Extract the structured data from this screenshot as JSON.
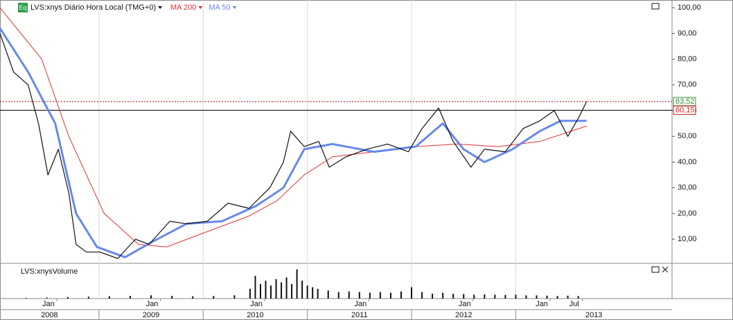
{
  "chart_data": {
    "type": "line",
    "title": "LVS:xnys Diário Hora Local (TMG+0)",
    "badge": "Eq",
    "volume_title": "LVS:xnysVolume",
    "xlim": [
      2008.05,
      2014.5
    ],
    "ylim": [
      0.9,
      103
    ],
    "yticks": [
      {
        "value": 10,
        "label": "10,00"
      },
      {
        "value": 20,
        "label": "20,00"
      },
      {
        "value": 30,
        "label": "30,00"
      },
      {
        "value": 40,
        "label": "40,00"
      },
      {
        "value": 50,
        "label": "50,00"
      },
      {
        "value": 60,
        "label": "60,00"
      },
      {
        "value": 70,
        "label": "70,00"
      },
      {
        "value": 80,
        "label": "80,00"
      },
      {
        "value": 90,
        "label": "90,00"
      },
      {
        "value": 100,
        "label": "100,00"
      }
    ],
    "month_ticks": [
      {
        "value": 2008.515,
        "label": "Jan"
      },
      {
        "value": 2009.51,
        "label": "Jan"
      },
      {
        "value": 2010.51,
        "label": "Jan"
      },
      {
        "value": 2011.51,
        "label": "Jan"
      },
      {
        "value": 2012.51,
        "label": "Jan"
      },
      {
        "value": 2013.25,
        "label": "Jan"
      },
      {
        "value": 2013.56,
        "label": "Jul"
      }
    ],
    "year_ticks": [
      {
        "value": 2008,
        "label": "2008"
      },
      {
        "value": 2009,
        "label": "2009"
      },
      {
        "value": 2010,
        "label": "2010"
      },
      {
        "value": 2011,
        "label": "2011"
      },
      {
        "value": 2012,
        "label": "2012"
      },
      {
        "value": 2013,
        "label": "2013"
      }
    ],
    "levels": [
      {
        "value": 63.52,
        "label": "63,52",
        "color": "#2e8b2e",
        "line": "#c00000"
      },
      {
        "value": 60.15,
        "label": "60,15",
        "color": "#d02020",
        "line": "#000000"
      }
    ],
    "series": [
      {
        "name": "LVS:xnys",
        "color": "#111111",
        "width": 1.2,
        "x": [
          2008.05,
          2008.18,
          2008.32,
          2008.42,
          2008.51,
          2008.61,
          2008.71,
          2008.78,
          2008.88,
          2009.01,
          2009.18,
          2009.35,
          2009.48,
          2009.68,
          2009.84,
          2010.04,
          2010.24,
          2010.44,
          2010.64,
          2010.77,
          2010.84,
          2010.97,
          2011.11,
          2011.21,
          2011.37,
          2011.57,
          2011.77,
          2011.97,
          2012.1,
          2012.26,
          2012.4,
          2012.57,
          2012.7,
          2012.9,
          2013.07,
          2013.23,
          2013.37,
          2013.5,
          2013.6,
          2013.68
        ],
        "values": [
          90,
          75,
          70,
          55,
          35,
          45,
          28,
          8,
          5,
          5,
          2.5,
          10,
          8,
          17,
          16,
          17,
          24,
          22,
          30,
          40,
          52,
          46,
          48,
          38,
          42,
          45,
          47,
          44,
          53,
          61,
          48,
          38,
          45,
          44,
          53,
          56,
          60,
          50,
          57,
          63.5
        ]
      },
      {
        "name": "MA 200",
        "color": "#e03030",
        "width": 1,
        "x": [
          2008.05,
          2008.45,
          2008.71,
          2009.05,
          2009.38,
          2009.65,
          2010.04,
          2010.44,
          2010.71,
          2010.97,
          2011.24,
          2011.64,
          2012.04,
          2012.44,
          2012.83,
          2013.23,
          2013.68
        ],
        "values": [
          100,
          80,
          50,
          20,
          8,
          7,
          13,
          19,
          25,
          35,
          42,
          44,
          46,
          47,
          46,
          48,
          54
        ]
      },
      {
        "name": "MA 50",
        "color": "#6688ee",
        "width": 3,
        "x": [
          2008.05,
          2008.32,
          2008.58,
          2008.78,
          2008.98,
          2009.25,
          2009.51,
          2009.84,
          2010.18,
          2010.51,
          2010.77,
          2010.97,
          2011.24,
          2011.64,
          2012.04,
          2012.3,
          2012.5,
          2012.7,
          2012.97,
          2013.23,
          2013.43,
          2013.68
        ],
        "values": [
          92,
          75,
          55,
          20,
          7,
          3,
          9,
          16,
          17,
          23,
          30,
          45,
          47,
          44,
          46,
          55,
          45,
          40,
          45,
          52,
          56,
          56
        ]
      }
    ],
    "volume": {
      "ylim": [
        0,
        100
      ],
      "color": "#111111",
      "x": [
        2008.3,
        2008.5,
        2008.7,
        2008.9,
        2009.1,
        2009.3,
        2009.5,
        2009.7,
        2009.9,
        2010.1,
        2010.3,
        2010.45,
        2010.5,
        2010.55,
        2010.6,
        2010.65,
        2010.7,
        2010.75,
        2010.8,
        2010.85,
        2010.9,
        2010.95,
        2011.0,
        2011.05,
        2011.1,
        2011.2,
        2011.3,
        2011.4,
        2011.5,
        2011.6,
        2011.7,
        2011.8,
        2011.9,
        2012.0,
        2012.1,
        2012.2,
        2012.3,
        2012.4,
        2012.5,
        2012.6,
        2012.7,
        2012.8,
        2012.9,
        2013.0,
        2013.1,
        2013.2,
        2013.3,
        2013.4,
        2013.5,
        2013.6
      ],
      "values": [
        2,
        3,
        5,
        6,
        7,
        8,
        10,
        8,
        7,
        8,
        10,
        30,
        70,
        45,
        55,
        40,
        60,
        50,
        65,
        45,
        90,
        55,
        40,
        35,
        30,
        25,
        20,
        22,
        20,
        18,
        20,
        18,
        22,
        35,
        20,
        15,
        18,
        15,
        14,
        12,
        13,
        12,
        11,
        12,
        10,
        10,
        9,
        8,
        9,
        8
      ]
    }
  }
}
